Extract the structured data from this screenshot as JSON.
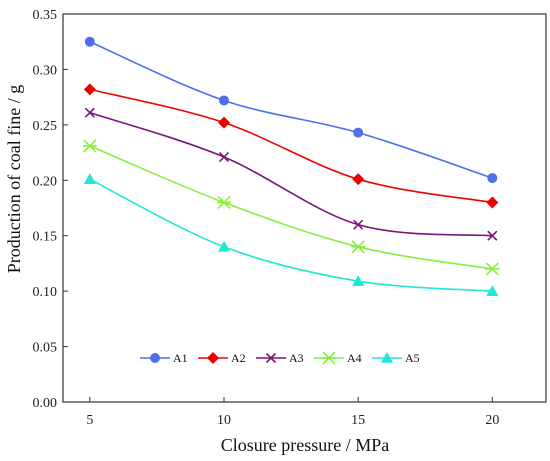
{
  "chart_data": {
    "type": "line",
    "x": [
      5,
      10,
      15,
      20
    ],
    "xlabel": "Closure pressure / MPa",
    "ylabel": "Production of coal fine / g",
    "xticks": [
      "5",
      "10",
      "15",
      "20"
    ],
    "yticks": [
      "0.00",
      "0.05",
      "0.10",
      "0.15",
      "0.20",
      "0.25",
      "0.30",
      "0.35"
    ],
    "ylim": [
      0,
      0.35
    ],
    "grid": false,
    "legend_position": "bottom-center",
    "series": [
      {
        "name": "A1",
        "values": [
          0.325,
          0.272,
          0.243,
          0.202
        ],
        "color": "#4f6fea",
        "marker": "circle"
      },
      {
        "name": "A2",
        "values": [
          0.282,
          0.252,
          0.201,
          0.18
        ],
        "color": "#ee0000",
        "marker": "diamond"
      },
      {
        "name": "A3",
        "values": [
          0.261,
          0.221,
          0.16,
          0.15
        ],
        "color": "#77157b",
        "marker": "x"
      },
      {
        "name": "A4",
        "values": [
          0.231,
          0.18,
          0.14,
          0.12
        ],
        "color": "#88ef3a",
        "marker": "asterisk"
      },
      {
        "name": "A5",
        "values": [
          0.201,
          0.14,
          0.109,
          0.1
        ],
        "color": "#1ee8d5",
        "marker": "triangle"
      }
    ]
  }
}
